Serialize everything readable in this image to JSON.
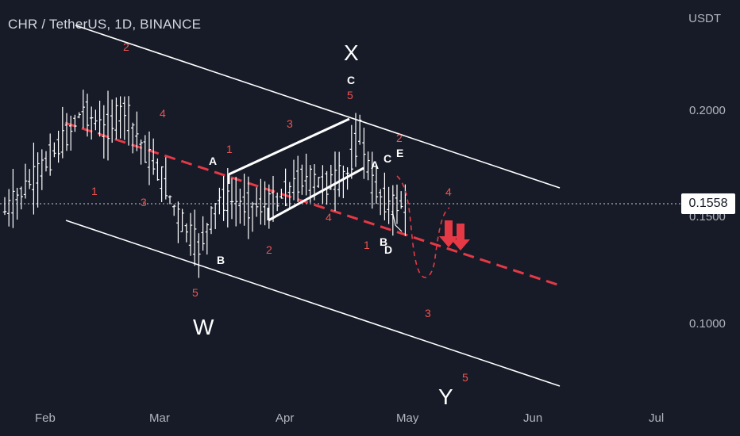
{
  "header": {
    "title": "CHR / TetherUS, 1D, BINANCE",
    "unit": "USDT"
  },
  "current_price": "0.1558",
  "colors": {
    "background": "#161b27",
    "candles": "#ffffff",
    "channel": "#ffffff",
    "midline": "#e53945",
    "wave_labels": "#ef5350",
    "arrows": "#e53945"
  },
  "chart_data": {
    "type": "ohlc",
    "symbol": "CHR / TetherUS",
    "interval": "1D",
    "exchange": "BINANCE",
    "x_ticks": [
      "Feb",
      "Mar",
      "Apr",
      "May",
      "Jun",
      "Jul"
    ],
    "y_ticks": [
      "0.1000",
      "0.1500",
      "0.2000"
    ],
    "y_unit": "USDT",
    "last_price": 0.1558,
    "close_series_approx": [
      {
        "date": "Jan 22",
        "close": 0.152
      },
      {
        "date": "Jan 30",
        "close": 0.17
      },
      {
        "date": "Feb 5",
        "close": 0.185
      },
      {
        "date": "Feb 10",
        "close": 0.2
      },
      {
        "date": "Feb 15",
        "close": 0.19
      },
      {
        "date": "Feb 20",
        "close": 0.2
      },
      {
        "date": "Feb 25",
        "close": 0.18
      },
      {
        "date": "Mar 1",
        "close": 0.168
      },
      {
        "date": "Mar 5",
        "close": 0.15
      },
      {
        "date": "Mar 10",
        "close": 0.135
      },
      {
        "date": "Mar 15",
        "close": 0.158
      },
      {
        "date": "Mar 22",
        "close": 0.155
      },
      {
        "date": "Mar 28",
        "close": 0.155
      },
      {
        "date": "Apr 4",
        "close": 0.168
      },
      {
        "date": "Apr 10",
        "close": 0.165
      },
      {
        "date": "Apr 15",
        "close": 0.17
      },
      {
        "date": "Apr 18",
        "close": 0.19
      },
      {
        "date": "Apr 21",
        "close": 0.165
      },
      {
        "date": "Apr 25",
        "close": 0.155
      },
      {
        "date": "Apr 29",
        "close": 0.156
      }
    ],
    "wave_labels": {
      "red": [
        "2",
        "4",
        "1",
        "3",
        "5",
        "2",
        "3",
        "4",
        "5",
        "1",
        "2",
        "4",
        "3",
        "5"
      ],
      "white": [
        "A",
        "B",
        "C",
        "A",
        "B",
        "C",
        "D",
        "E"
      ],
      "degree": [
        "X",
        "W",
        "Y"
      ]
    }
  }
}
